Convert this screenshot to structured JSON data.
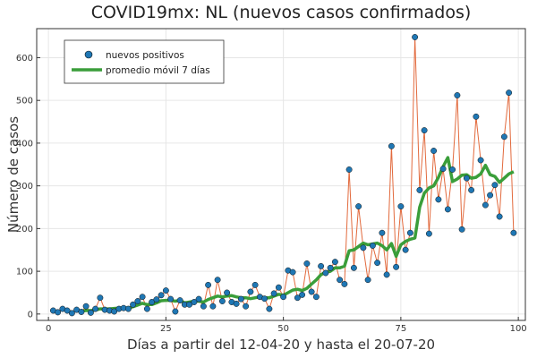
{
  "chart_data": {
    "type": "scatter",
    "title": "COVID19mx: NL (nuevos casos confirmados)",
    "xlabel": "Días a partir del 12-04-20 y hasta el 20-07-20",
    "ylabel": "Número de casos",
    "xlim": [
      -2.5,
      101.5
    ],
    "ylim": [
      -15,
      668
    ],
    "xticks": [
      0,
      25,
      50,
      75,
      100
    ],
    "yticks": [
      0,
      100,
      200,
      300,
      400,
      500,
      600
    ],
    "grid": true,
    "legend_position": "top-left",
    "series": [
      {
        "name": "nuevos positivos",
        "kind": "points",
        "color": "#1f77b4",
        "line_color": "#e26a3d",
        "x": [
          1,
          2,
          3,
          4,
          5,
          6,
          7,
          8,
          9,
          10,
          11,
          12,
          13,
          14,
          15,
          16,
          17,
          18,
          19,
          20,
          21,
          22,
          23,
          24,
          25,
          26,
          27,
          28,
          29,
          30,
          31,
          32,
          33,
          34,
          35,
          36,
          37,
          38,
          39,
          40,
          41,
          42,
          43,
          44,
          45,
          46,
          47,
          48,
          49,
          50,
          51,
          52,
          53,
          54,
          55,
          56,
          57,
          58,
          59,
          60,
          61,
          62,
          63,
          64,
          65,
          66,
          67,
          68,
          69,
          70,
          71,
          72,
          73,
          74,
          75,
          76,
          77,
          78,
          79,
          80,
          81,
          82,
          83,
          84,
          85,
          86,
          87,
          88,
          89,
          90,
          91,
          92,
          93,
          94,
          95,
          96,
          97,
          98,
          99
        ],
        "y": [
          8,
          4,
          12,
          8,
          2,
          10,
          5,
          18,
          3,
          12,
          38,
          10,
          8,
          6,
          12,
          14,
          12,
          22,
          30,
          40,
          12,
          28,
          34,
          44,
          55,
          35,
          6,
          32,
          22,
          22,
          28,
          35,
          18,
          68,
          18,
          80,
          30,
          50,
          28,
          24,
          35,
          18,
          52,
          68,
          40,
          36,
          12,
          48,
          62,
          40,
          102,
          98,
          38,
          45,
          118,
          52,
          40,
          112,
          96,
          108,
          122,
          80,
          70,
          338,
          108,
          252,
          155,
          80,
          160,
          120,
          190,
          92,
          393,
          110,
          252,
          150,
          190,
          648,
          290,
          430,
          188,
          382,
          268,
          340,
          245,
          338,
          512,
          198,
          318,
          290,
          462,
          360,
          255,
          278,
          302,
          228,
          415,
          518,
          190
        ]
      },
      {
        "name": "promedio móvil 7 días",
        "kind": "line",
        "color": "#3a9e3a",
        "x": [
          7,
          8,
          9,
          10,
          11,
          12,
          13,
          14,
          15,
          16,
          17,
          18,
          19,
          20,
          21,
          22,
          23,
          24,
          25,
          26,
          27,
          28,
          29,
          30,
          31,
          32,
          33,
          34,
          35,
          36,
          37,
          38,
          39,
          40,
          41,
          42,
          43,
          44,
          45,
          46,
          47,
          48,
          49,
          50,
          51,
          52,
          53,
          54,
          55,
          56,
          57,
          58,
          59,
          60,
          61,
          62,
          63,
          64,
          65,
          66,
          67,
          68,
          69,
          70,
          71,
          72,
          73,
          74,
          75,
          76,
          77,
          78,
          79,
          80,
          81,
          82,
          83,
          84,
          85,
          86,
          87,
          88,
          89,
          90,
          91,
          92,
          93,
          94,
          95,
          96,
          97,
          98,
          99
        ],
        "y": [
          7,
          8,
          8,
          9,
          12,
          12,
          12,
          13,
          14,
          15,
          14,
          17,
          21,
          25,
          22,
          22,
          26,
          31,
          32,
          32,
          30,
          32,
          26,
          28,
          30,
          30,
          28,
          34,
          38,
          42,
          40,
          42,
          43,
          40,
          38,
          38,
          36,
          38,
          40,
          38,
          38,
          42,
          46,
          44,
          50,
          56,
          58,
          55,
          60,
          70,
          80,
          92,
          98,
          100,
          108,
          108,
          112,
          148,
          150,
          158,
          166,
          162,
          164,
          166,
          160,
          150,
          165,
          135,
          162,
          170,
          175,
          178,
          250,
          283,
          295,
          300,
          320,
          345,
          366,
          310,
          316,
          325,
          326,
          318,
          320,
          328,
          348,
          326,
          322,
          308,
          318,
          328,
          333
        ]
      }
    ]
  }
}
